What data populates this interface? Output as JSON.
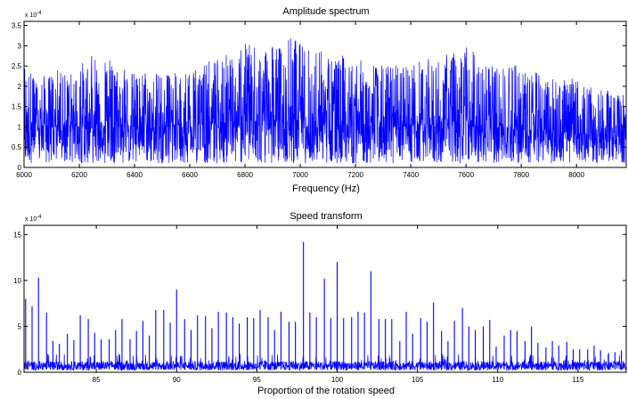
{
  "chart_data": [
    {
      "type": "line",
      "title": "Amplitude spectrum",
      "xlabel": "Frequency (Hz)",
      "ylabel": "",
      "y_multiplier_label": "x 10",
      "y_multiplier_exponent": "-4",
      "xlim": [
        6000,
        8180
      ],
      "ylim": [
        0,
        3.6
      ],
      "x_ticks": [
        6000,
        6200,
        6400,
        6600,
        6800,
        7000,
        7200,
        7400,
        7600,
        7800,
        8000
      ],
      "x_tick_labels": [
        "6000",
        "6200",
        "6400",
        "6600",
        "6800",
        "7000",
        "7200",
        "7400",
        "7600",
        "7800",
        "8000"
      ],
      "y_ticks": [
        0,
        0.5,
        1,
        1.5,
        2,
        2.5,
        3,
        3.5
      ],
      "y_tick_labels": [
        "0",
        "0.5",
        "1",
        "1.5",
        "2",
        "2.5",
        "3",
        "3.5"
      ],
      "color": "#0000ff",
      "series": [
        {
          "x": [
            6000,
            6040,
            6080,
            6120,
            6160,
            6200,
            6240,
            6270,
            6300,
            6340,
            6380,
            6420,
            6460,
            6500,
            6540,
            6580,
            6620,
            6660,
            6700,
            6740,
            6780,
            6820,
            6860,
            6900,
            6940,
            6970,
            7000,
            7040,
            7080,
            7120,
            7160,
            7200,
            7240,
            7280,
            7320,
            7360,
            7400,
            7440,
            7480,
            7520,
            7560,
            7600,
            7640,
            7680,
            7720,
            7760,
            7800,
            7840,
            7880,
            7920,
            7960,
            8000,
            8040,
            8080,
            8120,
            8160
          ],
          "envelope_upper": [
            2.8,
            2.2,
            2.3,
            2.4,
            2.3,
            2.6,
            2.7,
            3.15,
            2.7,
            2.6,
            2.4,
            2.3,
            2.4,
            2.4,
            2.3,
            2.5,
            2.6,
            2.6,
            2.7,
            2.8,
            2.9,
            3.2,
            3.0,
            3.1,
            3.0,
            3.35,
            3.1,
            2.9,
            2.9,
            2.7,
            2.8,
            2.7,
            2.6,
            2.5,
            2.6,
            2.6,
            2.6,
            2.7,
            2.7,
            2.8,
            2.9,
            3.15,
            2.7,
            2.6,
            2.5,
            2.6,
            2.5,
            2.4,
            2.3,
            2.3,
            2.2,
            2.2,
            2.0,
            1.9,
            1.9,
            1.8
          ],
          "envelope_lower": [
            0.1,
            0.1,
            0.1,
            0.1,
            0.1,
            0.1,
            0.1,
            0.1,
            0.1,
            0.1,
            0.1,
            0.1,
            0.1,
            0.1,
            0.1,
            0.1,
            0.1,
            0.1,
            0.1,
            0.1,
            0.1,
            0.1,
            0.1,
            0.1,
            0.1,
            0.1,
            0.1,
            0.1,
            0.1,
            0.1,
            0.1,
            0.1,
            0.1,
            0.1,
            0.1,
            0.1,
            0.1,
            0.1,
            0.1,
            0.1,
            0.1,
            0.1,
            0.1,
            0.1,
            0.1,
            0.1,
            0.1,
            0.1,
            0.1,
            0.1,
            0.1,
            0.1,
            0.1,
            0.1,
            0.1,
            0.1
          ],
          "mean": [
            0.9,
            0.95,
            1.0,
            1.0,
            1.0,
            1.0,
            1.05,
            1.05,
            1.05,
            1.0,
            1.0,
            1.0,
            1.0,
            1.0,
            1.0,
            1.0,
            1.0,
            1.05,
            1.05,
            1.1,
            1.1,
            1.1,
            1.1,
            1.1,
            1.1,
            1.1,
            1.1,
            1.05,
            1.05,
            1.05,
            1.0,
            1.0,
            1.0,
            1.0,
            1.0,
            1.0,
            1.0,
            1.0,
            1.0,
            1.0,
            1.0,
            1.0,
            1.0,
            0.95,
            0.95,
            0.95,
            0.9,
            0.9,
            0.9,
            0.85,
            0.85,
            0.8,
            0.8,
            0.75,
            0.75,
            0.7
          ]
        }
      ]
    },
    {
      "type": "line",
      "title": "Speed transform",
      "xlabel": "Proportion of the rotation speed",
      "ylabel": "",
      "y_multiplier_label": "x 10",
      "y_multiplier_exponent": "-4",
      "xlim": [
        80.5,
        118
      ],
      "ylim": [
        0,
        16
      ],
      "x_ticks": [
        85,
        90,
        95,
        100,
        105,
        110,
        115
      ],
      "x_tick_labels": [
        "85",
        "90",
        "95",
        "100",
        "105",
        "110",
        "115"
      ],
      "y_ticks": [
        0,
        5,
        10,
        15
      ],
      "y_tick_labels": [
        "0",
        "5",
        "10",
        "15"
      ],
      "color": "#0000ff",
      "noise_floor": 1.0,
      "peaks": [
        {
          "x": 80.6,
          "y": 8.0
        },
        {
          "x": 81.0,
          "y": 7.2
        },
        {
          "x": 81.4,
          "y": 10.3
        },
        {
          "x": 81.9,
          "y": 6.5
        },
        {
          "x": 82.3,
          "y": 3.4
        },
        {
          "x": 82.7,
          "y": 3.1
        },
        {
          "x": 83.2,
          "y": 4.2
        },
        {
          "x": 83.6,
          "y": 3.5
        },
        {
          "x": 84.0,
          "y": 6.2
        },
        {
          "x": 84.5,
          "y": 5.8
        },
        {
          "x": 84.9,
          "y": 4.3
        },
        {
          "x": 85.3,
          "y": 3.6
        },
        {
          "x": 85.8,
          "y": 3.6
        },
        {
          "x": 86.2,
          "y": 4.6
        },
        {
          "x": 86.6,
          "y": 5.8
        },
        {
          "x": 87.1,
          "y": 3.6
        },
        {
          "x": 87.5,
          "y": 4.5
        },
        {
          "x": 87.9,
          "y": 5.6
        },
        {
          "x": 88.3,
          "y": 4.0
        },
        {
          "x": 88.7,
          "y": 6.8
        },
        {
          "x": 89.2,
          "y": 6.8
        },
        {
          "x": 89.6,
          "y": 5.4
        },
        {
          "x": 90.0,
          "y": 9.0
        },
        {
          "x": 90.5,
          "y": 5.8
        },
        {
          "x": 90.9,
          "y": 4.6
        },
        {
          "x": 91.3,
          "y": 6.2
        },
        {
          "x": 91.8,
          "y": 6.1
        },
        {
          "x": 92.2,
          "y": 4.8
        },
        {
          "x": 92.6,
          "y": 6.6
        },
        {
          "x": 93.1,
          "y": 6.5
        },
        {
          "x": 93.5,
          "y": 6.0
        },
        {
          "x": 93.9,
          "y": 5.3
        },
        {
          "x": 94.4,
          "y": 6.0
        },
        {
          "x": 94.8,
          "y": 5.9
        },
        {
          "x": 95.2,
          "y": 6.8
        },
        {
          "x": 95.7,
          "y": 6.0
        },
        {
          "x": 96.1,
          "y": 4.6
        },
        {
          "x": 96.5,
          "y": 6.6
        },
        {
          "x": 97.0,
          "y": 5.5
        },
        {
          "x": 97.4,
          "y": 5.5
        },
        {
          "x": 97.9,
          "y": 14.2
        },
        {
          "x": 98.3,
          "y": 6.5
        },
        {
          "x": 98.7,
          "y": 6.0
        },
        {
          "x": 99.2,
          "y": 10.2
        },
        {
          "x": 99.6,
          "y": 5.9
        },
        {
          "x": 100.0,
          "y": 12.0
        },
        {
          "x": 100.4,
          "y": 5.9
        },
        {
          "x": 100.9,
          "y": 6.0
        },
        {
          "x": 101.3,
          "y": 6.6
        },
        {
          "x": 101.7,
          "y": 6.5
        },
        {
          "x": 102.1,
          "y": 11.0
        },
        {
          "x": 102.6,
          "y": 5.8
        },
        {
          "x": 103.0,
          "y": 5.8
        },
        {
          "x": 103.4,
          "y": 5.8
        },
        {
          "x": 103.9,
          "y": 3.4
        },
        {
          "x": 104.3,
          "y": 6.6
        },
        {
          "x": 104.7,
          "y": 4.2
        },
        {
          "x": 105.2,
          "y": 5.9
        },
        {
          "x": 105.6,
          "y": 5.5
        },
        {
          "x": 106.0,
          "y": 7.6
        },
        {
          "x": 106.5,
          "y": 4.5
        },
        {
          "x": 106.9,
          "y": 3.4
        },
        {
          "x": 107.3,
          "y": 5.6
        },
        {
          "x": 107.8,
          "y": 7.0
        },
        {
          "x": 108.2,
          "y": 5.0
        },
        {
          "x": 108.6,
          "y": 4.6
        },
        {
          "x": 109.1,
          "y": 5.0
        },
        {
          "x": 109.5,
          "y": 5.7
        },
        {
          "x": 109.9,
          "y": 2.8
        },
        {
          "x": 110.4,
          "y": 4.0
        },
        {
          "x": 110.8,
          "y": 4.6
        },
        {
          "x": 111.2,
          "y": 4.5
        },
        {
          "x": 111.7,
          "y": 3.4
        },
        {
          "x": 112.1,
          "y": 5.0
        },
        {
          "x": 112.5,
          "y": 3.2
        },
        {
          "x": 113.0,
          "y": 2.7
        },
        {
          "x": 113.4,
          "y": 3.4
        },
        {
          "x": 113.8,
          "y": 2.9
        },
        {
          "x": 114.3,
          "y": 3.3
        },
        {
          "x": 114.7,
          "y": 2.5
        },
        {
          "x": 115.1,
          "y": 2.5
        },
        {
          "x": 115.6,
          "y": 2.5
        },
        {
          "x": 116.0,
          "y": 2.9
        },
        {
          "x": 116.4,
          "y": 2.4
        },
        {
          "x": 116.9,
          "y": 2.1
        },
        {
          "x": 117.3,
          "y": 2.2
        },
        {
          "x": 117.7,
          "y": 2.4
        }
      ]
    }
  ]
}
